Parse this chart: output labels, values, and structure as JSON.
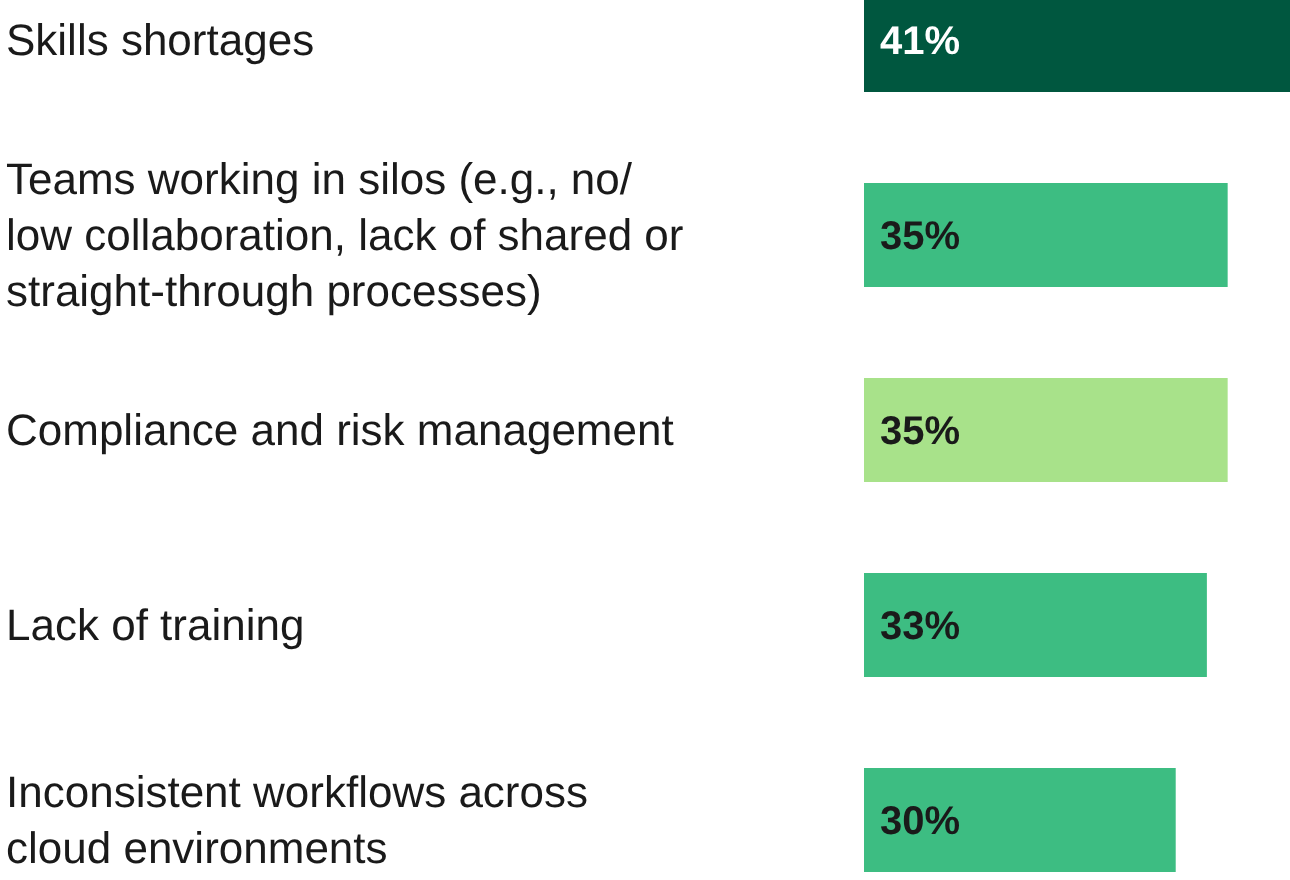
{
  "chart_data": {
    "type": "bar",
    "orientation": "horizontal",
    "categories": [
      "Skills shortages",
      "Teams working in silos (e.g., no/ low collaboration, lack of shared or straight-through processes)",
      "Compliance and risk management",
      "Lack of training",
      "Inconsistent workflows across cloud environments"
    ],
    "values": [
      41,
      35,
      35,
      33,
      30
    ],
    "value_labels": [
      "41%",
      "35%",
      "35%",
      "33%",
      "30%"
    ],
    "colors": [
      "#00573f",
      "#3dbd82",
      "#a8e28a",
      "#3dbd82",
      "#3dbd82"
    ]
  }
}
